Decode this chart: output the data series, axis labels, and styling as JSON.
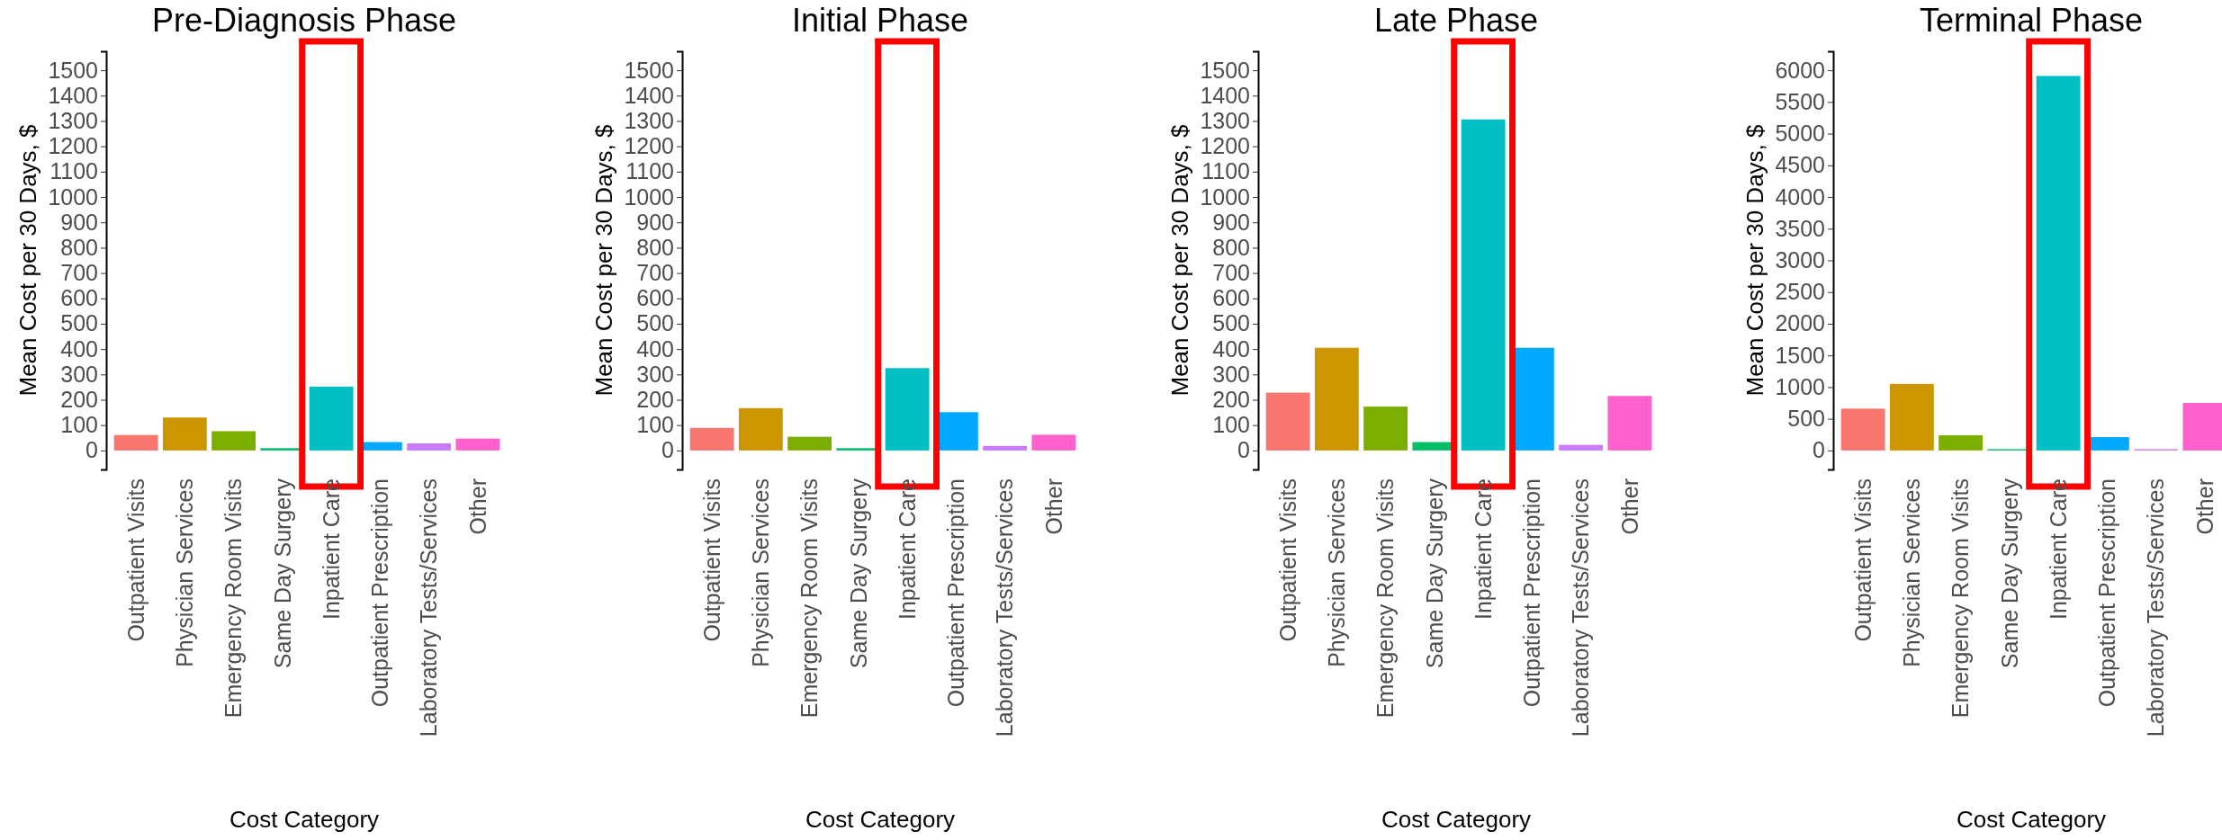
{
  "chart_data": [
    {
      "type": "bar",
      "title": "Pre-Diagnosis Phase",
      "xlabel": "Cost Category",
      "ylabel": "Mean Cost per 30 Days, $",
      "categories": [
        "Outpatient Visits",
        "Physician Services",
        "Emergency Room Visits",
        "Same Day Surgery",
        "Inpatient Care",
        "Outpatient Prescription",
        "Laboratory Tests/Services",
        "Other"
      ],
      "values": [
        61,
        130,
        76,
        9,
        252,
        33,
        28,
        47
      ],
      "colors": [
        "#f8766d",
        "#cd9600",
        "#7cae00",
        "#00be67",
        "#00bfc4",
        "#00a9ff",
        "#c77cff",
        "#ff61cc"
      ],
      "ylim": [
        -75,
        1575
      ],
      "yticks": [
        0,
        100,
        200,
        300,
        400,
        500,
        600,
        700,
        800,
        900,
        1000,
        1100,
        1200,
        1300,
        1400,
        1500
      ],
      "grid": false
    },
    {
      "type": "bar",
      "title": "Initial Phase",
      "xlabel": "Cost Category",
      "ylabel": "Mean Cost per 30 Days, $",
      "categories": [
        "Outpatient Visits",
        "Physician Services",
        "Emergency Room Visits",
        "Same Day Surgery",
        "Inpatient Care",
        "Outpatient Prescription",
        "Laboratory Tests/Services",
        "Other"
      ],
      "values": [
        89,
        167,
        54,
        9,
        325,
        151,
        18,
        62
      ],
      "colors": [
        "#f8766d",
        "#cd9600",
        "#7cae00",
        "#00be67",
        "#00bfc4",
        "#00a9ff",
        "#c77cff",
        "#ff61cc"
      ],
      "ylim": [
        -75,
        1575
      ],
      "yticks": [
        0,
        100,
        200,
        300,
        400,
        500,
        600,
        700,
        800,
        900,
        1000,
        1100,
        1200,
        1300,
        1400,
        1500
      ],
      "grid": false
    },
    {
      "type": "bar",
      "title": "Late Phase",
      "xlabel": "Cost Category",
      "ylabel": "Mean Cost per 30 Days, $",
      "categories": [
        "Outpatient Visits",
        "Physician Services",
        "Emergency Room Visits",
        "Same Day Surgery",
        "Inpatient Care",
        "Outpatient Prescription",
        "Laboratory Tests/Services",
        "Other"
      ],
      "values": [
        228,
        405,
        173,
        33,
        1306,
        405,
        22,
        215
      ],
      "colors": [
        "#f8766d",
        "#cd9600",
        "#7cae00",
        "#00be67",
        "#00bfc4",
        "#00a9ff",
        "#c77cff",
        "#ff61cc"
      ],
      "ylim": [
        -75,
        1575
      ],
      "yticks": [
        0,
        100,
        200,
        300,
        400,
        500,
        600,
        700,
        800,
        900,
        1000,
        1100,
        1200,
        1300,
        1400,
        1500
      ],
      "grid": false
    },
    {
      "type": "bar",
      "title": "Terminal Phase",
      "xlabel": "Cost Category",
      "ylabel": "Mean Cost per 30 Days, $",
      "categories": [
        "Outpatient Visits",
        "Physician Services",
        "Emergency Room Visits",
        "Same Day Surgery",
        "Inpatient Care",
        "Outpatient Prescription",
        "Laboratory Tests/Services",
        "Other"
      ],
      "values": [
        660,
        1050,
        240,
        20,
        5910,
        210,
        20,
        750
      ],
      "colors": [
        "#f8766d",
        "#cd9600",
        "#7cae00",
        "#00be67",
        "#00bfc4",
        "#00a9ff",
        "#c77cff",
        "#ff61cc"
      ],
      "ylim": [
        -300,
        6300
      ],
      "yticks": [
        0,
        500,
        1000,
        1500,
        2000,
        2500,
        3000,
        3500,
        4000,
        4500,
        5000,
        5500,
        6000
      ],
      "grid": false
    }
  ]
}
